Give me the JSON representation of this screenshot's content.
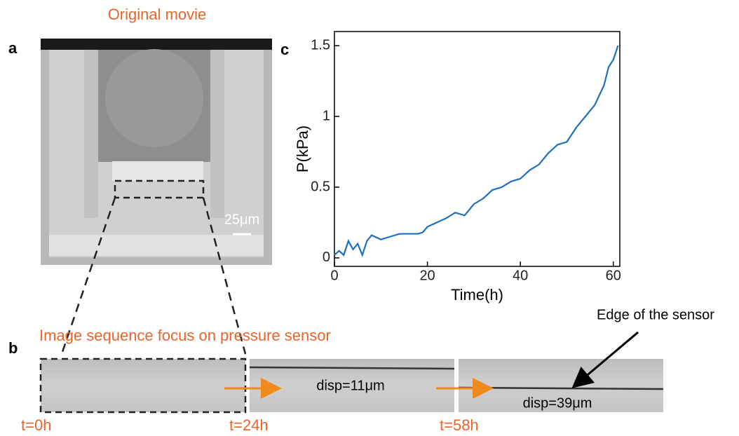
{
  "panels": {
    "a": {
      "label": "a",
      "title": "Original movie",
      "scale_bar": "25μm"
    },
    "b": {
      "label": "b",
      "title": "Image sequence focus on pressure sensor",
      "annotation": "Edge of the sensor",
      "frames": [
        {
          "time": "t=0h"
        },
        {
          "time": "t=24h",
          "disp": "disp=11μm"
        },
        {
          "time": "t=58h",
          "disp": "disp=39μm"
        }
      ]
    },
    "c": {
      "label": "c"
    }
  },
  "chart_data": {
    "type": "line",
    "xlabel": "Time(h)",
    "ylabel": "P(kPa)",
    "x": [
      0,
      1,
      2,
      3,
      4,
      5,
      6,
      7,
      8,
      10,
      12,
      14,
      16,
      18,
      19,
      20,
      22,
      24,
      26,
      28,
      30,
      32,
      34,
      36,
      38,
      40,
      42,
      44,
      46,
      48,
      50,
      52,
      54,
      56,
      58,
      59,
      60,
      61
    ],
    "series": [
      {
        "color": "#1f6fbf",
        "values": [
          0.02,
          0.05,
          0.02,
          0.12,
          0.06,
          0.1,
          0.02,
          0.12,
          0.16,
          0.13,
          0.15,
          0.17,
          0.17,
          0.17,
          0.18,
          0.22,
          0.25,
          0.28,
          0.32,
          0.3,
          0.38,
          0.42,
          0.48,
          0.5,
          0.54,
          0.56,
          0.62,
          0.66,
          0.74,
          0.8,
          0.82,
          0.92,
          1.0,
          1.08,
          1.22,
          1.35,
          1.4,
          1.5
        ]
      }
    ],
    "xlim": [
      0,
      61.4
    ],
    "ylim": [
      -0.06,
      1.6
    ],
    "xticks": [
      0,
      20,
      40,
      60
    ],
    "yticks": [
      0,
      0.5,
      1,
      1.5
    ]
  }
}
